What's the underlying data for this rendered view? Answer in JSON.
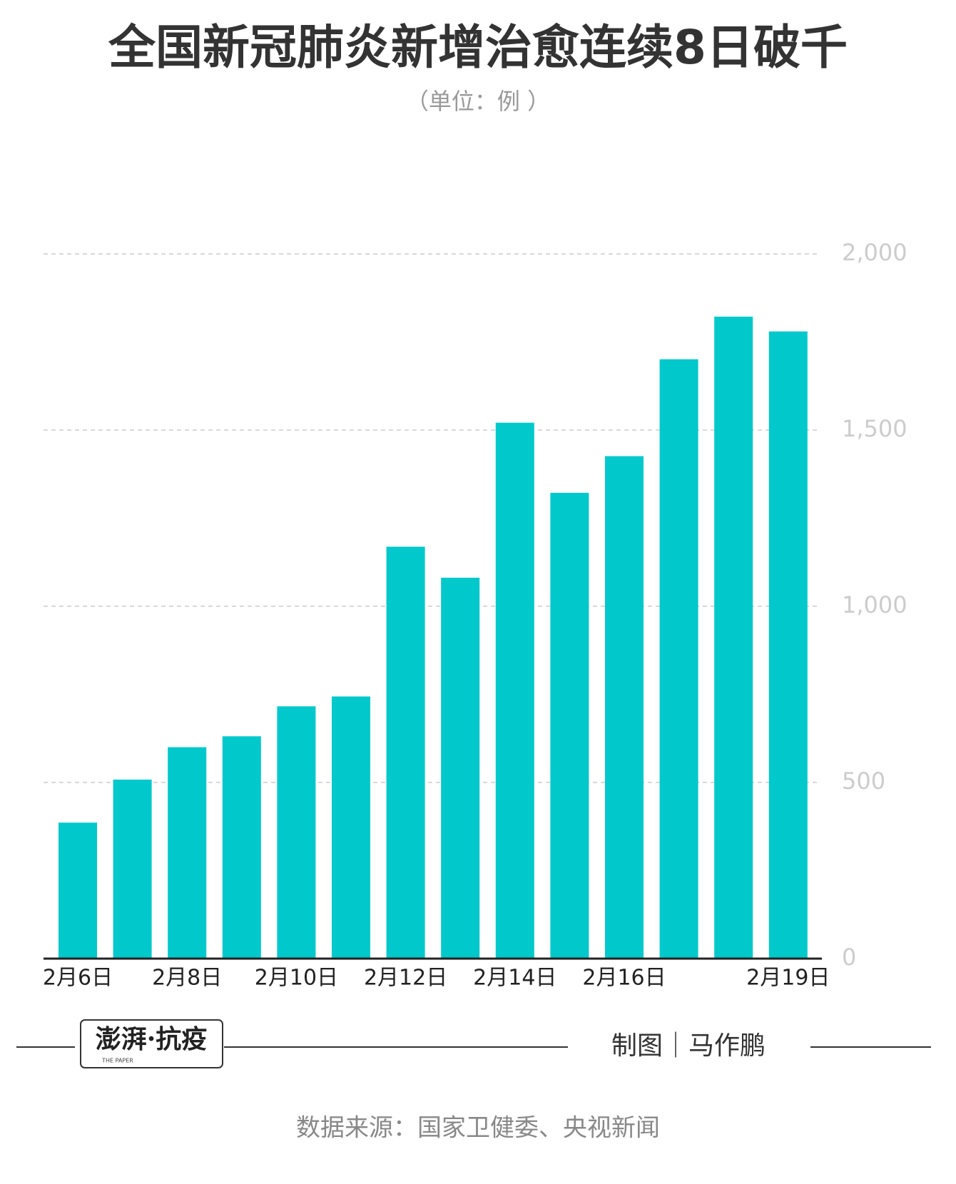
{
  "chart_data": {
    "type": "bar",
    "title": "全国新冠肺炎新增治愈连续8日破千",
    "subtitle": "（单位：例 ）",
    "categories": [
      "2月6日",
      null,
      "2月8日",
      null,
      "2月10日",
      null,
      "2月12日",
      null,
      "2月14日",
      null,
      "2月16日",
      null,
      null,
      "2月19日"
    ],
    "values": [
      386,
      508,
      600,
      631,
      716,
      744,
      1169,
      1081,
      1521,
      1322,
      1426,
      1701,
      1822,
      1780
    ],
    "color": "#00c8cb",
    "ylim": [
      0,
      2000
    ],
    "yticks": [
      0,
      500,
      {
        "value": 1000,
        "label": "1,000"
      },
      {
        "value": 1500,
        "label": "1,500"
      },
      {
        "value": 2000,
        "label": "2,000"
      }
    ],
    "grid": true
  },
  "branding": {
    "logo": "澎湃·抗疫",
    "logo_sub": "THE PAPER",
    "credit": "制图｜马作鹏",
    "source": "数据来源：国家卫健委、央视新闻"
  }
}
